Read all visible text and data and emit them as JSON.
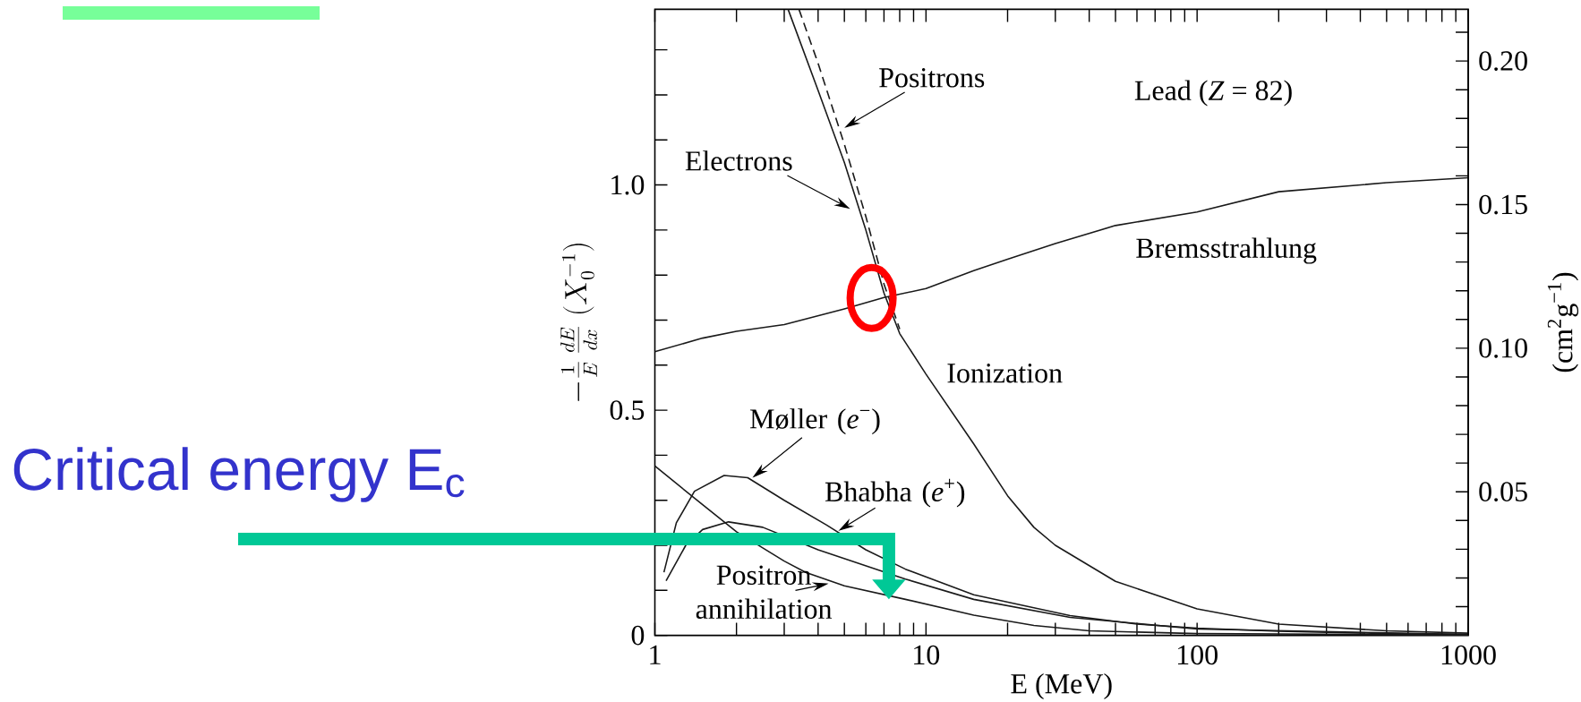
{
  "chart_data": {
    "type": "line",
    "log": "x",
    "xlabel": "E (MeV)",
    "ylabel": "-\\frac{1}{E}\\,\\frac{dE}{dx}\\;(X_0^{-1})",
    "y2label": "(cm$^{2}$g$^{−1}$)",
    "xlim": [
      1,
      1000
    ],
    "ylim": [
      0,
      1.39
    ],
    "y2lim": [
      0,
      0.218
    ],
    "xticks": [
      1,
      {
        "value": 2,
        "label": null
      },
      {
        "value": 3,
        "label": null
      },
      {
        "value": 4,
        "label": null
      },
      {
        "value": 5,
        "label": null
      },
      {
        "value": 6,
        "label": null
      },
      {
        "value": 7,
        "label": null
      },
      {
        "value": 8,
        "label": null
      },
      {
        "value": 9,
        "label": null
      },
      10,
      {
        "value": 20,
        "label": null
      },
      {
        "value": 30,
        "label": null
      },
      {
        "value": 40,
        "label": null
      },
      {
        "value": 50,
        "label": null
      },
      {
        "value": 60,
        "label": null
      },
      {
        "value": 70,
        "label": null
      },
      {
        "value": 80,
        "label": null
      },
      {
        "value": 90,
        "label": null
      },
      100,
      {
        "value": 200,
        "label": null
      },
      {
        "value": 300,
        "label": null
      },
      {
        "value": 400,
        "label": null
      },
      {
        "value": 500,
        "label": null
      },
      {
        "value": 600,
        "label": null
      },
      {
        "value": 700,
        "label": null
      },
      {
        "value": 800,
        "label": null
      },
      {
        "value": 900,
        "label": null
      },
      1000
    ],
    "yticks": [
      0,
      {
        "value": 0.1,
        "label": null
      },
      {
        "value": 0.2,
        "label": null
      },
      {
        "value": 0.3,
        "label": null
      },
      {
        "value": 0.4,
        "label": null
      },
      0.5,
      {
        "value": 0.6,
        "label": null
      },
      {
        "value": 0.7,
        "label": null
      },
      {
        "value": 0.8,
        "label": null
      },
      {
        "value": 0.9,
        "label": null
      },
      {
        "value": 1,
        "label": "1.0"
      },
      {
        "value": 1.1,
        "label": null
      },
      {
        "value": 1.2,
        "label": null
      },
      {
        "value": 1.3,
        "label": null
      }
    ],
    "y2ticks": [
      {
        "value": 0.01,
        "label": null
      },
      {
        "value": 0.02,
        "label": null
      },
      {
        "value": 0.03,
        "label": null
      },
      {
        "value": 0.04,
        "label": null
      },
      0.05,
      {
        "value": 0.06,
        "label": null
      },
      {
        "value": 0.07,
        "label": null
      },
      {
        "value": 0.08,
        "label": null
      },
      {
        "value": 0.09,
        "label": null
      },
      {
        "value": 0.1,
        "label": "0.10"
      },
      {
        "value": 0.11,
        "label": null
      },
      {
        "value": 0.12,
        "label": null
      },
      {
        "value": 0.13,
        "label": null
      },
      {
        "value": 0.14,
        "label": null
      },
      0.15,
      {
        "value": 0.16,
        "label": null
      },
      {
        "value": 0.17,
        "label": null
      },
      {
        "value": 0.18,
        "label": null
      },
      {
        "value": 0.19,
        "label": null
      },
      {
        "value": 0.2,
        "label": "0.20"
      },
      {
        "value": 0.21,
        "label": null
      }
    ],
    "series": [
      {
        "name": "Electrons",
        "color": "#1a1a1a",
        "x": [
          3.1,
          4,
          5,
          6,
          7,
          8,
          10,
          15,
          20,
          25,
          30,
          50,
          100,
          200,
          500,
          1000
        ],
        "values": [
          1.39,
          1.21,
          1.05,
          0.9,
          0.76,
          0.67,
          0.58,
          0.425,
          0.31,
          0.24,
          0.2,
          0.12,
          0.059,
          0.025,
          0.01,
          0.005
        ]
      },
      {
        "name": "Positrons",
        "color": "#1a1a1a",
        "line_style": "dashed",
        "x": [
          3.4,
          4,
          5,
          6,
          7,
          8
        ],
        "values": [
          1.39,
          1.27,
          1.09,
          0.93,
          0.78,
          0.68
        ]
      },
      {
        "name": "Bremsstrahlung",
        "color": "#1a1a1a",
        "x": [
          1,
          1.5,
          2,
          3,
          5,
          7,
          10,
          15,
          20,
          30,
          50,
          100,
          200,
          500,
          1000
        ],
        "values": [
          0.63,
          0.66,
          0.675,
          0.69,
          0.725,
          0.75,
          0.77,
          0.81,
          0.835,
          0.87,
          0.91,
          0.94,
          0.985,
          1.005,
          1.016
        ]
      },
      {
        "name": "Møller (*e*$^{−}$)",
        "color": "#1a1a1a",
        "x": [
          1.08,
          1.2,
          1.4,
          1.8,
          2.2,
          3,
          4.3,
          6,
          8.4,
          15,
          34,
          60,
          100,
          200,
          500,
          1000
        ],
        "values": [
          0.14,
          0.25,
          0.32,
          0.355,
          0.35,
          0.3,
          0.245,
          0.19,
          0.147,
          0.09,
          0.044,
          0.025,
          0.016,
          0.009,
          0.004,
          0.002
        ]
      },
      {
        "name": "Bhabha (*e*$^{+}$)",
        "color": "#1a1a1a",
        "x": [
          1.1,
          1.3,
          1.5,
          1.87,
          2.5,
          4,
          8.4,
          15,
          34,
          100,
          1000
        ],
        "values": [
          0.121,
          0.2,
          0.235,
          0.252,
          0.24,
          0.19,
          0.125,
          0.08,
          0.04,
          0.014,
          0.002
        ]
      },
      {
        "name": "Positron annihilation",
        "color": "#1a1a1a",
        "x": [
          1,
          1.5,
          2,
          3,
          3.6,
          5,
          8.4,
          15,
          25,
          40,
          100,
          1000
        ],
        "values": [
          0.376,
          0.29,
          0.23,
          0.165,
          0.14,
          0.11,
          0.08,
          0.045,
          0.022,
          0.01,
          0.004,
          0.001
        ]
      }
    ],
    "annotations": [
      "Lead  (*Z* = 82)",
      "Ionization",
      "Critical energy  E$_{c}$"
    ]
  }
}
